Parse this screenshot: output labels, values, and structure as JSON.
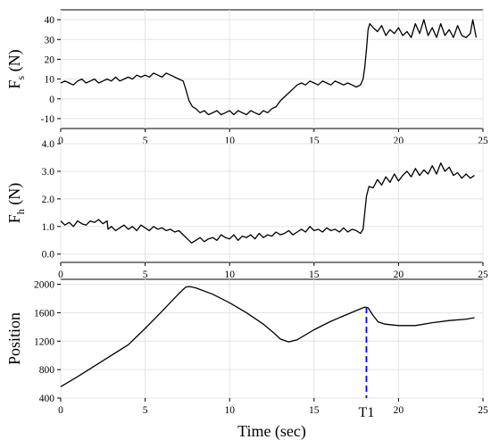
{
  "chart_data": [
    {
      "type": "line",
      "ylabel_main": "F",
      "ylabel_sub": "s",
      "ylabel_unit": " (N)",
      "xlim": [
        0,
        25
      ],
      "ylim": [
        -15,
        45
      ],
      "xticks": [
        0,
        5,
        10,
        15,
        20,
        25
      ],
      "yticks": [
        -10,
        0,
        10,
        20,
        30,
        40
      ],
      "ytick_labels": [
        "-10",
        "0",
        "10",
        "20",
        "30",
        "40"
      ],
      "grid": true,
      "series": [
        {
          "values": [
            [
              0,
              8
            ],
            [
              0.25,
              9
            ],
            [
              0.5,
              8
            ],
            [
              0.75,
              7
            ],
            [
              1,
              9
            ],
            [
              1.25,
              10
            ],
            [
              1.5,
              8
            ],
            [
              1.75,
              9
            ],
            [
              2,
              10
            ],
            [
              2.25,
              8
            ],
            [
              2.5,
              9
            ],
            [
              2.75,
              10
            ],
            [
              3,
              9
            ],
            [
              3.25,
              11
            ],
            [
              3.5,
              9
            ],
            [
              3.75,
              10
            ],
            [
              4,
              11
            ],
            [
              4.25,
              10
            ],
            [
              4.5,
              12
            ],
            [
              4.75,
              11
            ],
            [
              5,
              12
            ],
            [
              5.25,
              11
            ],
            [
              5.5,
              13
            ],
            [
              5.75,
              12
            ],
            [
              6,
              11
            ],
            [
              6.25,
              13
            ],
            [
              6.5,
              12
            ],
            [
              6.75,
              11
            ],
            [
              7,
              10
            ],
            [
              7.25,
              9
            ],
            [
              7.4,
              5
            ],
            [
              7.6,
              -1
            ],
            [
              7.8,
              -4
            ],
            [
              8,
              -5
            ],
            [
              8.25,
              -7
            ],
            [
              8.5,
              -6
            ],
            [
              8.75,
              -8
            ],
            [
              9,
              -7
            ],
            [
              9.25,
              -6
            ],
            [
              9.5,
              -8
            ],
            [
              9.75,
              -7
            ],
            [
              10,
              -6
            ],
            [
              10.25,
              -8
            ],
            [
              10.5,
              -6
            ],
            [
              10.75,
              -7
            ],
            [
              11,
              -8
            ],
            [
              11.25,
              -6
            ],
            [
              11.5,
              -7
            ],
            [
              11.75,
              -8
            ],
            [
              12,
              -6
            ],
            [
              12.25,
              -7
            ],
            [
              12.5,
              -5
            ],
            [
              12.75,
              -4
            ],
            [
              13,
              -1
            ],
            [
              13.25,
              1
            ],
            [
              13.5,
              3
            ],
            [
              13.75,
              5
            ],
            [
              14,
              7
            ],
            [
              14.25,
              8
            ],
            [
              14.5,
              7
            ],
            [
              14.75,
              9
            ],
            [
              15,
              8
            ],
            [
              15.25,
              7
            ],
            [
              15.5,
              9
            ],
            [
              15.75,
              8
            ],
            [
              16,
              7
            ],
            [
              16.25,
              9
            ],
            [
              16.5,
              8
            ],
            [
              16.75,
              7
            ],
            [
              17,
              8
            ],
            [
              17.25,
              7
            ],
            [
              17.5,
              6
            ],
            [
              17.75,
              7
            ],
            [
              17.9,
              10
            ],
            [
              18,
              16
            ],
            [
              18.1,
              25
            ],
            [
              18.2,
              35
            ],
            [
              18.3,
              38
            ],
            [
              18.5,
              36
            ],
            [
              18.75,
              34
            ],
            [
              19,
              37
            ],
            [
              19.25,
              32
            ],
            [
              19.5,
              35
            ],
            [
              19.75,
              33
            ],
            [
              20,
              36
            ],
            [
              20.25,
              32
            ],
            [
              20.5,
              34
            ],
            [
              20.75,
              31
            ],
            [
              21,
              38
            ],
            [
              21.25,
              33
            ],
            [
              21.5,
              40
            ],
            [
              21.75,
              32
            ],
            [
              22,
              36
            ],
            [
              22.25,
              31
            ],
            [
              22.5,
              38
            ],
            [
              22.75,
              32
            ],
            [
              23,
              35
            ],
            [
              23.25,
              31
            ],
            [
              23.5,
              37
            ],
            [
              23.75,
              32
            ],
            [
              24,
              31
            ],
            [
              24.25,
              33
            ],
            [
              24.4,
              40
            ],
            [
              24.6,
              31
            ]
          ]
        }
      ]
    },
    {
      "type": "line",
      "ylabel_main": "F",
      "ylabel_sub": "h",
      "ylabel_unit": " (N)",
      "xlim": [
        0,
        25
      ],
      "ylim": [
        -0.3,
        4.0
      ],
      "xticks": [
        0,
        5,
        10,
        15,
        20,
        25
      ],
      "yticks": [
        0,
        1,
        2,
        3,
        4
      ],
      "ytick_labels": [
        "0.0",
        "1.0",
        "2.0",
        "3.0",
        "4.0"
      ],
      "grid": true,
      "series": [
        {
          "values": [
            [
              0,
              1.2
            ],
            [
              0.25,
              1.05
            ],
            [
              0.5,
              1.15
            ],
            [
              0.75,
              1.0
            ],
            [
              1,
              1.2
            ],
            [
              1.25,
              1.1
            ],
            [
              1.5,
              1.05
            ],
            [
              1.75,
              1.2
            ],
            [
              2,
              1.15
            ],
            [
              2.25,
              1.25
            ],
            [
              2.5,
              1.1
            ],
            [
              2.75,
              1.2
            ],
            [
              2.8,
              0.9
            ],
            [
              3,
              1.0
            ],
            [
              3.25,
              0.85
            ],
            [
              3.5,
              0.95
            ],
            [
              3.75,
              1.05
            ],
            [
              4,
              0.9
            ],
            [
              4.25,
              1.0
            ],
            [
              4.5,
              0.85
            ],
            [
              4.75,
              1.05
            ],
            [
              5,
              0.95
            ],
            [
              5.25,
              0.85
            ],
            [
              5.5,
              1.0
            ],
            [
              5.75,
              0.9
            ],
            [
              6,
              0.95
            ],
            [
              6.25,
              0.85
            ],
            [
              6.5,
              0.9
            ],
            [
              6.75,
              0.8
            ],
            [
              7,
              0.85
            ],
            [
              7.25,
              0.7
            ],
            [
              7.5,
              0.55
            ],
            [
              7.75,
              0.4
            ],
            [
              8,
              0.5
            ],
            [
              8.25,
              0.6
            ],
            [
              8.5,
              0.45
            ],
            [
              8.75,
              0.55
            ],
            [
              9,
              0.6
            ],
            [
              9.25,
              0.5
            ],
            [
              9.5,
              0.7
            ],
            [
              9.75,
              0.6
            ],
            [
              10,
              0.55
            ],
            [
              10.25,
              0.7
            ],
            [
              10.5,
              0.5
            ],
            [
              10.75,
              0.65
            ],
            [
              11,
              0.6
            ],
            [
              11.25,
              0.7
            ],
            [
              11.5,
              0.55
            ],
            [
              11.75,
              0.75
            ],
            [
              12,
              0.6
            ],
            [
              12.25,
              0.7
            ],
            [
              12.5,
              0.65
            ],
            [
              12.75,
              0.8
            ],
            [
              13,
              0.7
            ],
            [
              13.25,
              0.75
            ],
            [
              13.5,
              0.85
            ],
            [
              13.75,
              0.7
            ],
            [
              14,
              0.8
            ],
            [
              14.25,
              0.9
            ],
            [
              14.5,
              0.8
            ],
            [
              14.75,
              1.0
            ],
            [
              15,
              0.85
            ],
            [
              15.25,
              0.9
            ],
            [
              15.5,
              0.8
            ],
            [
              15.75,
              0.95
            ],
            [
              16,
              0.85
            ],
            [
              16.25,
              0.9
            ],
            [
              16.5,
              0.8
            ],
            [
              16.75,
              0.95
            ],
            [
              17,
              0.8
            ],
            [
              17.25,
              0.9
            ],
            [
              17.5,
              0.85
            ],
            [
              17.75,
              0.75
            ],
            [
              17.9,
              0.9
            ],
            [
              18,
              1.5
            ],
            [
              18.1,
              2.1
            ],
            [
              18.25,
              2.45
            ],
            [
              18.5,
              2.4
            ],
            [
              18.75,
              2.7
            ],
            [
              19,
              2.5
            ],
            [
              19.25,
              2.8
            ],
            [
              19.5,
              2.6
            ],
            [
              19.75,
              2.9
            ],
            [
              20,
              2.65
            ],
            [
              20.25,
              2.85
            ],
            [
              20.5,
              3.0
            ],
            [
              20.75,
              2.8
            ],
            [
              21,
              3.1
            ],
            [
              21.25,
              2.85
            ],
            [
              21.5,
              3.05
            ],
            [
              21.75,
              2.9
            ],
            [
              22,
              3.2
            ],
            [
              22.25,
              2.9
            ],
            [
              22.5,
              3.3
            ],
            [
              22.75,
              3.0
            ],
            [
              23,
              3.15
            ],
            [
              23.25,
              2.85
            ],
            [
              23.5,
              2.95
            ],
            [
              23.75,
              2.75
            ],
            [
              24,
              2.9
            ],
            [
              24.25,
              2.75
            ],
            [
              24.5,
              2.85
            ]
          ]
        }
      ]
    },
    {
      "type": "line",
      "ylabel_main": "Position",
      "xlabel": "Time (sec)",
      "xlim": [
        0,
        25
      ],
      "ylim": [
        400,
        2070
      ],
      "xticks": [
        0,
        5,
        10,
        15,
        20,
        25
      ],
      "xtick_labels": [
        "0",
        "5",
        "10",
        "15",
        "T1",
        "20",
        "25"
      ],
      "xtick_label_values": [
        0,
        5,
        10,
        15,
        18.1,
        20,
        25
      ],
      "yticks": [
        400,
        800,
        1200,
        1600,
        2000
      ],
      "ytick_labels": [
        "400",
        "800",
        "1200",
        "1600",
        "2000"
      ],
      "grid": true,
      "series": [
        {
          "values": [
            [
              0,
              560
            ],
            [
              1,
              700
            ],
            [
              2,
              850
            ],
            [
              3,
              1000
            ],
            [
              4,
              1150
            ],
            [
              5,
              1380
            ],
            [
              6,
              1620
            ],
            [
              7,
              1870
            ],
            [
              7.4,
              1960
            ],
            [
              7.6,
              1970
            ],
            [
              8,
              1950
            ],
            [
              9,
              1860
            ],
            [
              10,
              1740
            ],
            [
              11,
              1600
            ],
            [
              12,
              1440
            ],
            [
              12.6,
              1320
            ],
            [
              13,
              1230
            ],
            [
              13.5,
              1190
            ],
            [
              14,
              1220
            ],
            [
              15,
              1360
            ],
            [
              16,
              1480
            ],
            [
              17,
              1580
            ],
            [
              17.5,
              1630
            ],
            [
              18,
              1680
            ],
            [
              18.2,
              1670
            ],
            [
              18.5,
              1560
            ],
            [
              18.8,
              1470
            ],
            [
              19.2,
              1440
            ],
            [
              20,
              1420
            ],
            [
              21,
              1420
            ],
            [
              22,
              1460
            ],
            [
              23,
              1490
            ],
            [
              24,
              1510
            ],
            [
              24.5,
              1530
            ]
          ]
        }
      ],
      "annotations": [
        {
          "label": "T1",
          "x": 18.1,
          "y": 1680,
          "color": "#0000ff",
          "style": "dashed vertical line"
        }
      ]
    }
  ]
}
